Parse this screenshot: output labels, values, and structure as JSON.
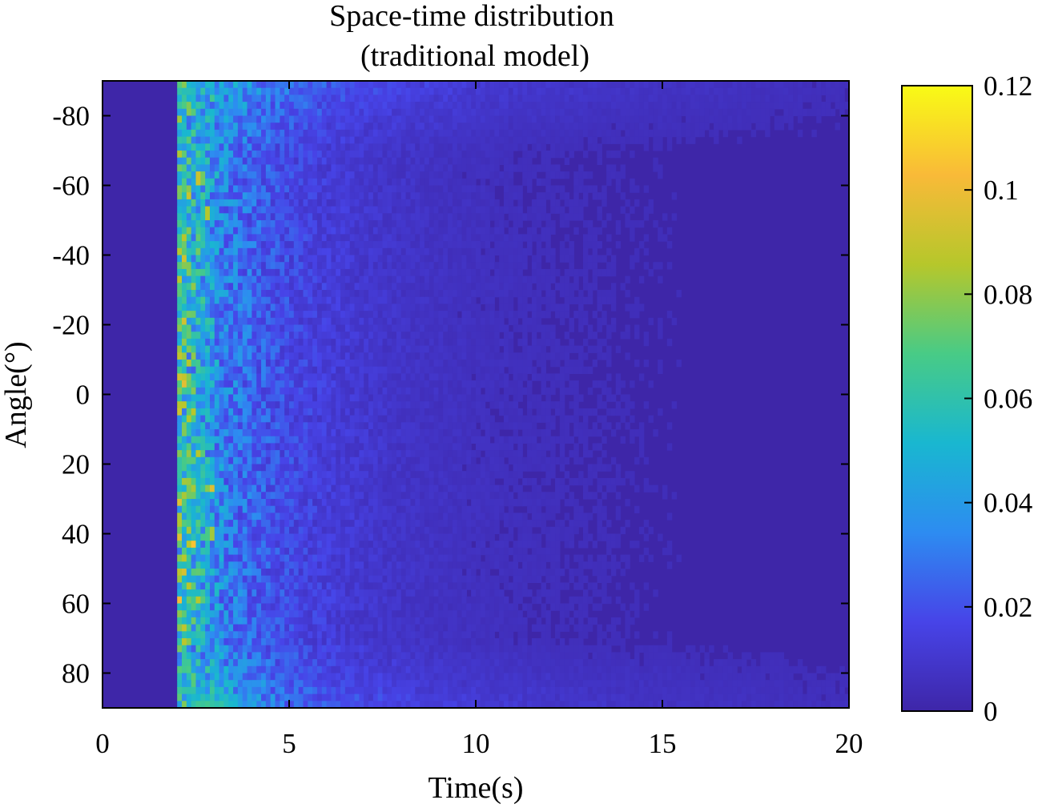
{
  "chart_data": {
    "type": "heatmap",
    "title": "Space-time distribution",
    "subtitle": "(traditional model)",
    "xlabel": "Time(s)",
    "ylabel": "Angle(°)",
    "xlim": [
      0,
      20
    ],
    "ylim": [
      -90,
      90
    ],
    "y_reversed": true,
    "xticks": [
      0,
      5,
      10,
      15,
      20
    ],
    "xtick_labels": [
      "0",
      "5",
      "10",
      "15",
      "20"
    ],
    "yticks": [
      -80,
      -60,
      -40,
      -20,
      0,
      20,
      40,
      60,
      80
    ],
    "ytick_labels": [
      "-80",
      "-60",
      "-40",
      "-20",
      "0",
      "20",
      "40",
      "60",
      "80"
    ],
    "grid": false,
    "colormap": "parula",
    "colorbar": {
      "range": [
        0,
        0.12
      ],
      "ticks": [
        0,
        0.02,
        0.04,
        0.06,
        0.08,
        0.1,
        0.12
      ],
      "tick_labels": [
        "0",
        "0.02",
        "0.04",
        "0.06",
        "0.08",
        "0.1",
        "0.12"
      ],
      "placement": "right"
    },
    "background_value": 0.003,
    "signal_onset_time": 2,
    "hotspots": [
      {
        "time": 2.6,
        "angle": -62,
        "value": 0.11
      },
      {
        "time": 2.8,
        "angle": -52,
        "value": 0.1
      },
      {
        "time": 2.3,
        "angle": -36,
        "value": 0.09
      },
      {
        "time": 2.4,
        "angle": 5,
        "value": 0.09
      },
      {
        "time": 2.6,
        "angle": 17,
        "value": 0.09
      },
      {
        "time": 2.9,
        "angle": 27,
        "value": 0.1
      },
      {
        "time": 2.4,
        "angle": 28,
        "value": 0.09
      },
      {
        "time": 2.4,
        "angle": 43,
        "value": 0.11
      },
      {
        "time": 2.9,
        "angle": 40,
        "value": 0.1
      },
      {
        "time": 2.6,
        "angle": 59,
        "value": 0.09
      }
    ]
  },
  "colors": {
    "axis": "#000000",
    "background": "#ffffff",
    "colormap_stops": [
      "#3e26a8",
      "#4744e8",
      "#2d8cf1",
      "#19b7d0",
      "#48cb86",
      "#b6c72b",
      "#f9ba38",
      "#f9fb15"
    ]
  }
}
